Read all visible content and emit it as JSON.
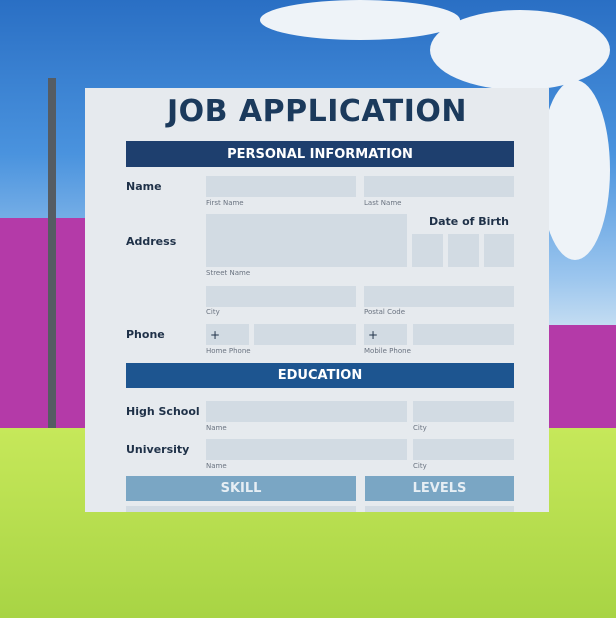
{
  "form": {
    "title": "JOB APPLICATION",
    "personal_header": "PERSONAL INFORMATION",
    "name_label": "Name",
    "first_name": "First Name",
    "last_name": "Last Name",
    "address_label": "Address",
    "street_name": "Street Name",
    "dob_label": "Date of Birth",
    "city": "City",
    "postal_code": "Postal Code",
    "phone_label": "Phone",
    "plus": "+",
    "home_phone": "Home Phone",
    "mobile_phone": "Mobile Phone",
    "education_header": "EDUCATION",
    "high_school_label": "High School",
    "university_label": "University",
    "name_sub": "Name",
    "city_sub": "City",
    "skill_header": "SKILL",
    "levels_header": "LEVELS"
  },
  "colors": {
    "primary": "#1e3f6e",
    "education": "#1d5590",
    "skill": "#7aa6c4",
    "field": "#d2dbe3"
  }
}
